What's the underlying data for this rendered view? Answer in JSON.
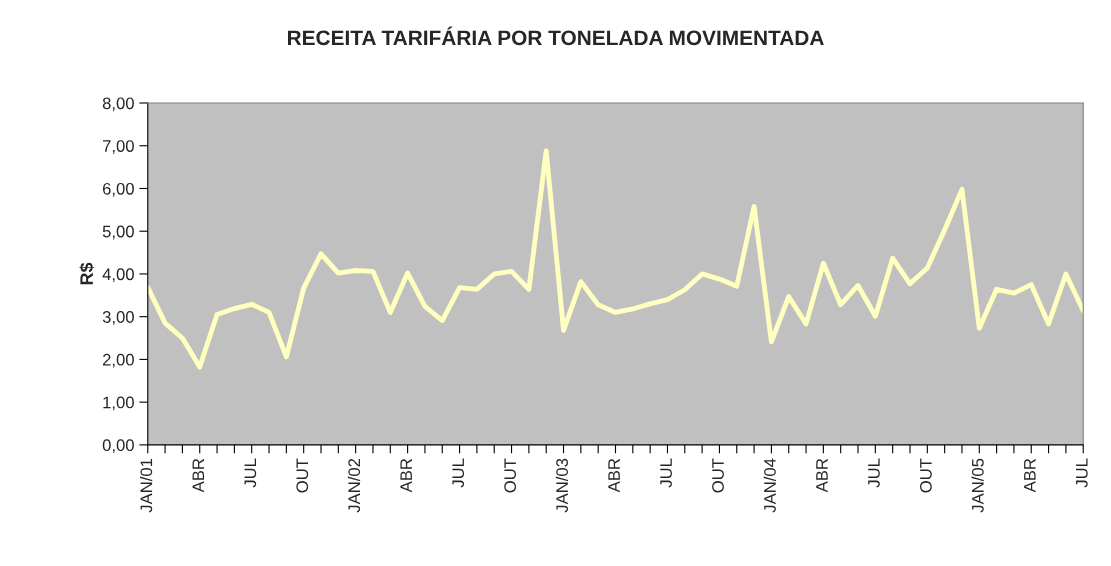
{
  "chart_data": {
    "type": "line",
    "title": "RECEITA TARIFÁRIA POR TONELADA MOVIMENTADA",
    "ylabel": "R$",
    "categories": [
      "JAN/01",
      null,
      null,
      "ABR",
      null,
      null,
      "JUL",
      null,
      null,
      "OUT",
      null,
      null,
      "JAN/02",
      null,
      null,
      "ABR",
      null,
      null,
      "JUL",
      null,
      null,
      "OUT",
      null,
      null,
      "JAN/03",
      null,
      null,
      "ABR",
      null,
      null,
      "JUL",
      null,
      null,
      "OUT",
      null,
      null,
      "JAN/04",
      null,
      null,
      "ABR",
      null,
      null,
      "JUL",
      null,
      null,
      "OUT",
      null,
      null,
      "JAN/05",
      null,
      null,
      "ABR",
      null,
      null,
      "JUL"
    ],
    "series": [
      {
        "color": "#ffffc0",
        "values": [
          3.69,
          2.85,
          2.5,
          1.82,
          3.05,
          3.19,
          3.29,
          3.1,
          2.06,
          3.67,
          4.47,
          4.02,
          4.08,
          4.06,
          3.1,
          4.02,
          3.24,
          2.91,
          3.68,
          3.64,
          4.0,
          4.06,
          3.64,
          6.88,
          2.68,
          3.82,
          3.28,
          3.1,
          3.18,
          3.3,
          3.4,
          3.63,
          4.0,
          3.88,
          3.71,
          5.58,
          2.41,
          3.47,
          2.83,
          4.25,
          3.28,
          3.73,
          3.01,
          4.37,
          3.77,
          4.14,
          5.03,
          5.98,
          2.73,
          3.64,
          3.55,
          3.75,
          2.83,
          4.0,
          3.14
        ]
      }
    ],
    "ylim": [
      0,
      8
    ],
    "yticks": [
      {
        "value": 0,
        "label": "0,00"
      },
      {
        "value": 1,
        "label": "1,00"
      },
      {
        "value": 2,
        "label": "2,00"
      },
      {
        "value": 3,
        "label": "3,00"
      },
      {
        "value": 4,
        "label": "4,00"
      },
      {
        "value": 5,
        "label": "5,00"
      },
      {
        "value": 6,
        "label": "6,00"
      },
      {
        "value": 7,
        "label": "7,00"
      },
      {
        "value": 8,
        "label": "8,00"
      }
    ],
    "grid": false,
    "legend": false,
    "marker": "none",
    "line_style": "solid"
  }
}
